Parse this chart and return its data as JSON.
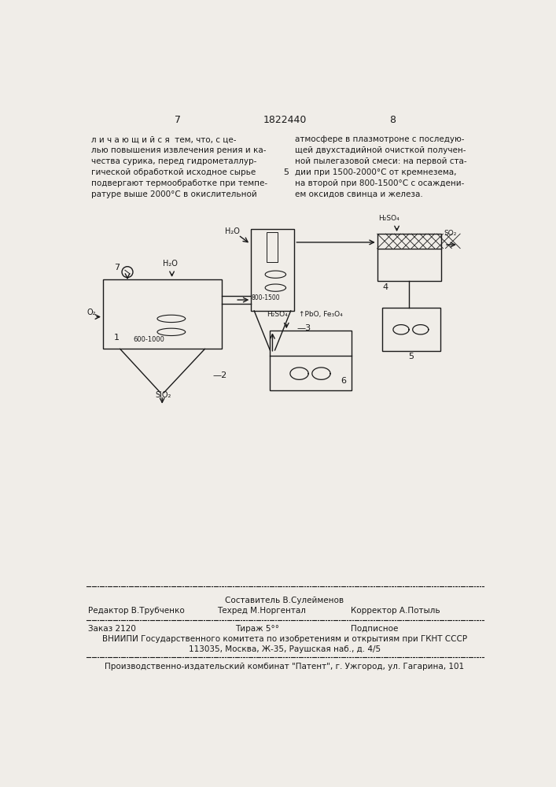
{
  "bg_color": "#f0ede8",
  "text_color": "#1a1a1a",
  "page_num_left": "7",
  "patent_num": "1822440",
  "page_num_right": "8",
  "left_text": "л и ч а ю щ и й с я  тем, что, с це-\nлью повышения извлечения рения и ка-\nчества сурика, перед гидрометаллур-\nгической обработкой исходное сырье\nподвергают термообработке при темпе-\nратуре выше 2000°С в окислительной",
  "line_number": "5",
  "right_text": "атмосфере в плазмотроне с последую-\nщей двухстадийной очисткой получен-\nной пылегазовой смеси: на первой ста-\nдии при 1500-2000°С от кремнезема,\nна второй при 800-1500°С с осаждени-\nем оксидов свинца и железа.",
  "footer_composer": "Составитель В.Сулейменов",
  "footer_editor": "Редактор В.Трубченко",
  "footer_techred": "Техред М.Норгентал",
  "footer_corrector": "Корректор А.Потыль",
  "footer_order": "Заказ 2120",
  "footer_tirazh": "Тираж 5°°",
  "footer_podpisnoe": "Подписное",
  "footer_vniip1": "ВНИИПИ Государственного комитета по изобретениям и открытиям при ГКНТ СССР",
  "footer_vniip2": "113035, Москва, Ж-35, Раушская наб., д. 4/5",
  "footer_patent": "Производственно-издательский комбинат \"Патент\", г. Ужгород, ул. Гагарина, 101"
}
